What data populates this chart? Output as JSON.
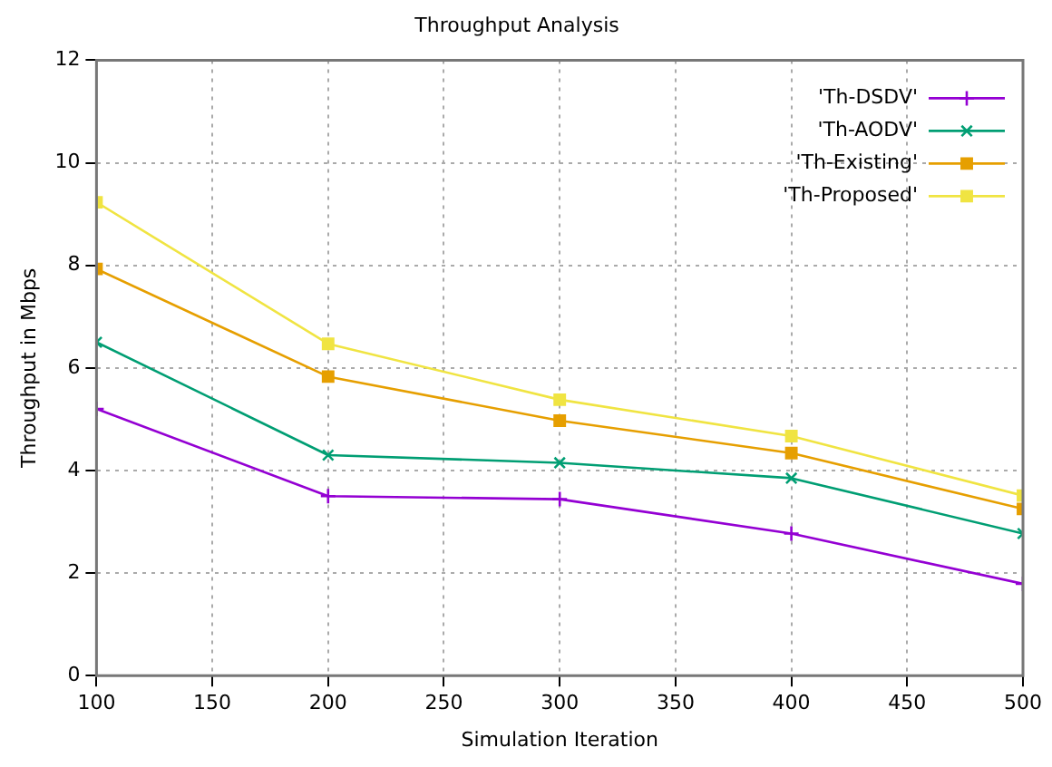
{
  "chart_data": {
    "type": "line",
    "title": "Throughput Analysis",
    "xlabel": "Simulation Iteration",
    "ylabel": "Throughput in Mbps",
    "x": [
      100,
      200,
      300,
      400,
      500
    ],
    "series": [
      {
        "name": "'Th-DSDV'",
        "color": "#9400d3",
        "marker": "cross",
        "values": [
          5.2,
          3.5,
          3.44,
          2.77,
          1.79
        ]
      },
      {
        "name": "'Th-AODV'",
        "color": "#009e73",
        "marker": "x",
        "values": [
          6.5,
          4.3,
          4.15,
          3.85,
          2.77
        ]
      },
      {
        "name": "'Th-Existing'",
        "color": "#e69f00",
        "marker": "square",
        "values": [
          7.93,
          5.83,
          4.97,
          4.34,
          3.25
        ]
      },
      {
        "name": "'Th-Proposed'",
        "color": "#f0e442",
        "marker": "square",
        "values": [
          9.23,
          6.47,
          5.38,
          4.67,
          3.51
        ]
      }
    ],
    "xlim": [
      100,
      500
    ],
    "xticks": [
      100,
      150,
      200,
      250,
      300,
      350,
      400,
      450,
      500
    ],
    "ylim": [
      0,
      12
    ],
    "yticks": [
      0,
      2,
      4,
      6,
      8,
      10,
      12
    ],
    "grid": true,
    "legend": "top right",
    "line_style": "solid"
  }
}
